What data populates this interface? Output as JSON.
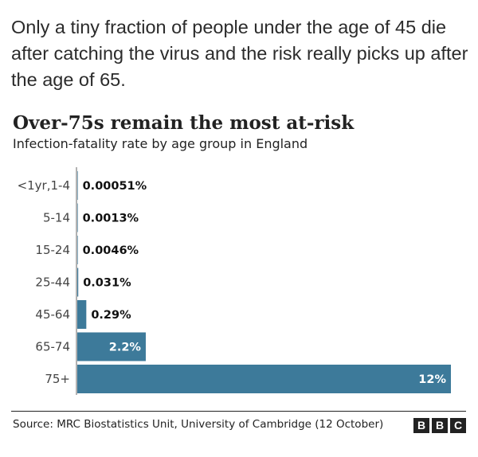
{
  "intro_text": "Only a tiny fraction of people under the age of 45 die after catching the virus and the risk really picks up after the age of 65.",
  "chart_data": {
    "type": "bar",
    "orientation": "horizontal",
    "title": "Over-75s remain the most at-risk",
    "subtitle": "Infection-fatality rate by age group in England",
    "categories": [
      "<1yr,1-4",
      "5-14",
      "15-24",
      "25-44",
      "45-64",
      "65-74",
      "75+"
    ],
    "values": [
      0.00051,
      0.0013,
      0.0046,
      0.031,
      0.29,
      2.2,
      12
    ],
    "value_labels": [
      "0.00051%",
      "0.0013%",
      "0.0046%",
      "0.031%",
      "0.29%",
      "2.2%",
      "12%"
    ],
    "unit": "%",
    "xlim": [
      0,
      12
    ],
    "grid": false,
    "bar_color": "#3d7a9a"
  },
  "source": "Source: MRC Biostatistics Unit, University of Cambridge (12 October)",
  "logo": [
    "B",
    "B",
    "C"
  ]
}
